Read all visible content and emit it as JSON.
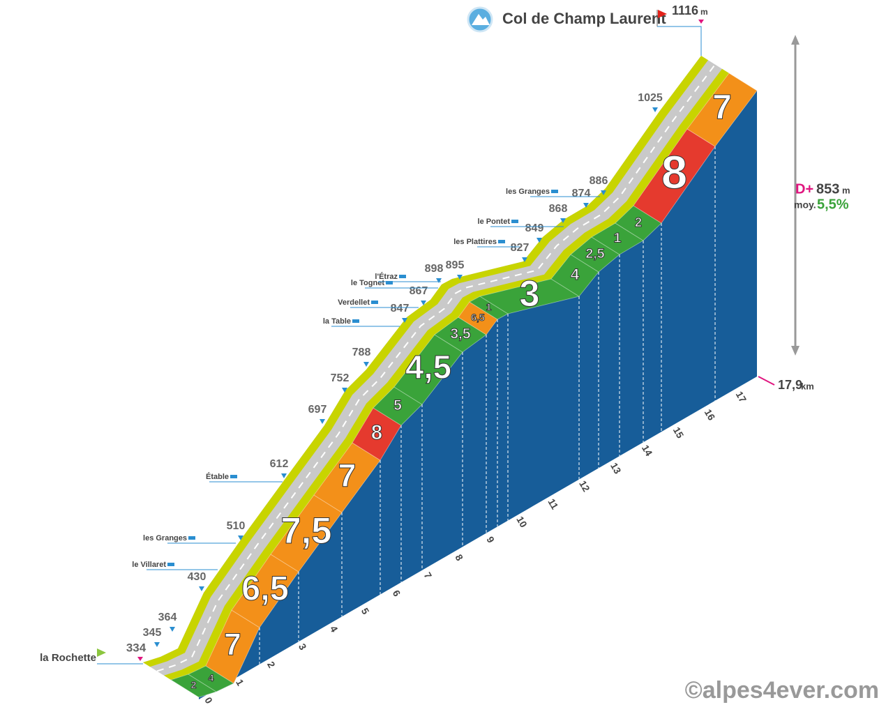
{
  "header": {
    "title": "Col de Champ Laurent",
    "summit_altitude": "1116",
    "summit_unit": "m"
  },
  "start": {
    "name": "la Rochette",
    "altitude": "334"
  },
  "altitudes": [
    "345",
    "364",
    "430",
    "510",
    "612",
    "697",
    "752",
    "788",
    "847",
    "867",
    "898",
    "895",
    "827",
    "849",
    "868",
    "874",
    "886",
    "1025"
  ],
  "places": [
    "les Granges",
    "le Villaret",
    "Étable",
    "la Table",
    "Verdellet",
    "le Tognet",
    "l'Étraz",
    "les Plattires",
    "le Pontet",
    "les Granges"
  ],
  "gradients": [
    "2",
    "4",
    "7",
    "6,5",
    "7,5",
    "7",
    "8",
    "5",
    "4,5",
    "3,5",
    "6,5",
    "1",
    "3",
    "4",
    "2,5",
    "1",
    "2",
    "8",
    "7"
  ],
  "km_markers": [
    "0",
    "1",
    "2",
    "3",
    "4",
    "5",
    "6",
    "7",
    "8",
    "9",
    "10",
    "11",
    "12",
    "13",
    "14",
    "15",
    "16",
    "17"
  ],
  "summary": {
    "gain_label": "D+",
    "gain": "853",
    "gain_unit": "m",
    "average_label": "moy.",
    "average": "5,5%",
    "distance": "17,9",
    "distance_unit": "km"
  },
  "credit": "©alpes4ever.com"
}
